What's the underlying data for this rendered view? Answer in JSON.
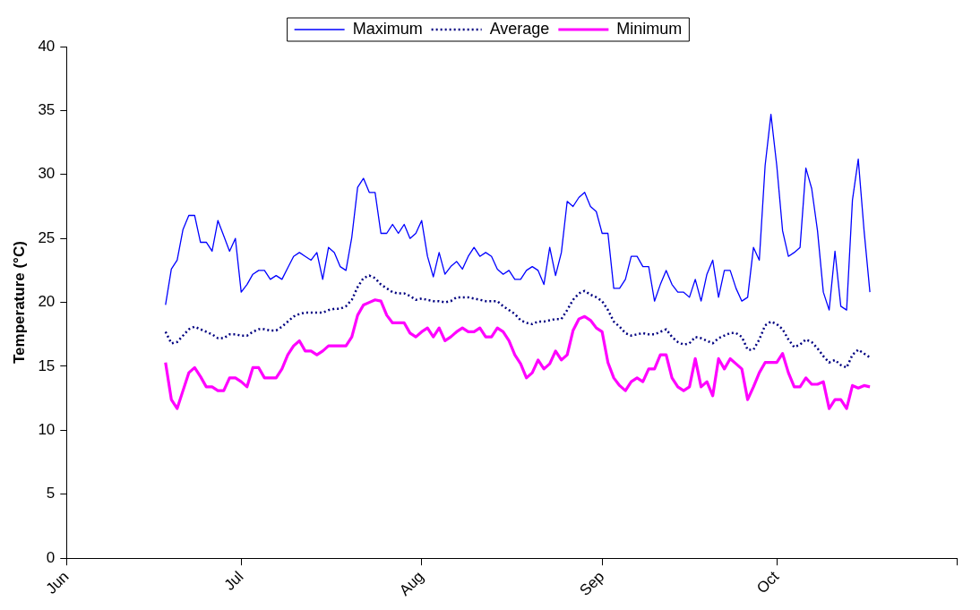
{
  "chart_data": {
    "type": "line",
    "ylabel": "Temperature (°C)",
    "ylim": [
      0,
      40
    ],
    "yticks": [
      0,
      5,
      10,
      15,
      20,
      25,
      30,
      35,
      40
    ],
    "grid": false,
    "legend": "top",
    "marker": "none",
    "xlim": [
      "--06-01",
      "--11-01"
    ],
    "xticks": [
      {
        "value": "--06-01",
        "label": "Jun"
      },
      {
        "value": "--07-01",
        "label": "Jul"
      },
      {
        "value": "--08-01",
        "label": "Aug"
      },
      {
        "value": "--09-01",
        "label": "Sep"
      },
      {
        "value": "--10-01",
        "label": "Oct"
      },
      {
        "value": "--11-01",
        "label": null
      }
    ],
    "x": [
      "--06-18",
      "--06-19",
      "--06-20",
      "--06-21",
      "--06-22",
      "--06-23",
      "--06-24",
      "--06-25",
      "--06-26",
      "--06-27",
      "--06-28",
      "--06-29",
      "--06-30",
      "--07-01",
      "--07-02",
      "--07-03",
      "--07-04",
      "--07-05",
      "--07-06",
      "--07-07",
      "--07-08",
      "--07-09",
      "--07-10",
      "--07-11",
      "--07-12",
      "--07-13",
      "--07-14",
      "--07-15",
      "--07-16",
      "--07-17",
      "--07-18",
      "--07-19",
      "--07-20",
      "--07-21",
      "--07-22",
      "--07-23",
      "--07-24",
      "--07-25",
      "--07-26",
      "--07-27",
      "--07-28",
      "--07-29",
      "--07-30",
      "--07-31",
      "--08-01",
      "--08-02",
      "--08-03",
      "--08-04",
      "--08-05",
      "--08-06",
      "--08-07",
      "--08-08",
      "--08-09",
      "--08-10",
      "--08-11",
      "--08-12",
      "--08-13",
      "--08-14",
      "--08-15",
      "--08-16",
      "--08-17",
      "--08-18",
      "--08-19",
      "--08-20",
      "--08-21",
      "--08-22",
      "--08-23",
      "--08-24",
      "--08-25",
      "--08-26",
      "--08-27",
      "--08-28",
      "--08-29",
      "--08-30",
      "--08-31",
      "--09-01",
      "--09-02",
      "--09-03",
      "--09-04",
      "--09-05",
      "--09-06",
      "--09-07",
      "--09-08",
      "--09-09",
      "--09-10",
      "--09-11",
      "--09-12",
      "--09-13",
      "--09-14",
      "--09-15",
      "--09-16",
      "--09-17",
      "--09-18",
      "--09-19",
      "--09-20",
      "--09-21",
      "--09-22",
      "--09-23",
      "--09-24",
      "--09-25",
      "--09-26",
      "--09-27",
      "--09-28",
      "--09-29",
      "--09-30",
      "--10-01",
      "--10-02",
      "--10-03",
      "--10-04",
      "--10-05",
      "--10-06",
      "--10-07",
      "--10-08",
      "--10-09",
      "--10-10",
      "--10-11",
      "--10-12",
      "--10-13",
      "--10-14",
      "--10-15",
      "--10-16",
      "--10-17"
    ],
    "series": [
      {
        "name": "Maximum",
        "color": "#0000ff",
        "line_style": "solid",
        "values": [
          19.8,
          22.6,
          23.3,
          25.7,
          26.8,
          26.8,
          24.7,
          24.7,
          24.0,
          26.4,
          25.2,
          24.0,
          25.0,
          20.8,
          21.4,
          22.2,
          22.5,
          22.5,
          21.8,
          22.1,
          21.8,
          22.7,
          23.6,
          23.9,
          23.6,
          23.3,
          23.9,
          21.8,
          24.3,
          23.9,
          22.8,
          22.5,
          25.1,
          29.0,
          29.7,
          28.6,
          28.6,
          25.4,
          25.4,
          26.1,
          25.4,
          26.1,
          25.0,
          25.4,
          26.4,
          23.6,
          22.0,
          23.9,
          22.2,
          22.8,
          23.2,
          22.6,
          23.6,
          24.3,
          23.6,
          23.9,
          23.6,
          22.6,
          22.2,
          22.5,
          21.8,
          21.8,
          22.5,
          22.8,
          22.5,
          21.4,
          24.3,
          22.1,
          23.9,
          27.9,
          27.5,
          28.2,
          28.6,
          27.5,
          27.1,
          25.4,
          25.4,
          21.1,
          21.1,
          21.8,
          23.6,
          23.6,
          22.8,
          22.8,
          20.1,
          21.4,
          22.5,
          21.4,
          20.8,
          20.8,
          20.4,
          21.8,
          20.1,
          22.2,
          23.3,
          20.4,
          22.5,
          22.5,
          21.1,
          20.1,
          20.4,
          24.3,
          23.3,
          30.7,
          34.7,
          30.7,
          25.6,
          23.6,
          23.9,
          24.3,
          30.5,
          28.9,
          25.6,
          20.8,
          19.4,
          24.0,
          19.7,
          19.4,
          28.0,
          31.2,
          25.6,
          20.8
        ]
      },
      {
        "name": "Average",
        "color": "#000080",
        "line_style": "dotted",
        "values": [
          17.7,
          16.8,
          16.9,
          17.4,
          17.9,
          18.1,
          17.9,
          17.7,
          17.5,
          17.2,
          17.2,
          17.5,
          17.5,
          17.4,
          17.4,
          17.7,
          17.9,
          17.9,
          17.8,
          17.8,
          18.1,
          18.5,
          18.9,
          19.1,
          19.2,
          19.2,
          19.2,
          19.2,
          19.4,
          19.5,
          19.5,
          19.7,
          20.2,
          21.2,
          21.9,
          22.1,
          21.9,
          21.4,
          21.1,
          20.8,
          20.7,
          20.7,
          20.5,
          20.2,
          20.3,
          20.2,
          20.1,
          20.1,
          20.0,
          20.1,
          20.4,
          20.4,
          20.4,
          20.3,
          20.2,
          20.1,
          20.1,
          20.1,
          19.7,
          19.4,
          19.1,
          18.6,
          18.4,
          18.3,
          18.5,
          18.5,
          18.6,
          18.7,
          18.7,
          19.4,
          20.2,
          20.7,
          20.9,
          20.6,
          20.4,
          20.1,
          19.4,
          18.5,
          18.1,
          17.6,
          17.4,
          17.5,
          17.6,
          17.5,
          17.5,
          17.7,
          17.9,
          17.3,
          16.9,
          16.7,
          16.8,
          17.3,
          17.2,
          17.0,
          16.8,
          17.2,
          17.4,
          17.6,
          17.6,
          17.3,
          16.3,
          16.3,
          17.1,
          18.2,
          18.5,
          18.3,
          17.9,
          17.1,
          16.5,
          16.7,
          17.1,
          16.9,
          16.4,
          15.8,
          15.3,
          15.5,
          15.1,
          14.9,
          15.9,
          16.3,
          16.0,
          15.7
        ]
      },
      {
        "name": "Minimum",
        "color": "#ff00ff",
        "line_style": "solid",
        "values": [
          15.3,
          12.4,
          11.7,
          13.1,
          14.5,
          14.9,
          14.2,
          13.4,
          13.4,
          13.1,
          13.1,
          14.1,
          14.1,
          13.8,
          13.4,
          14.9,
          14.9,
          14.1,
          14.1,
          14.1,
          14.8,
          15.9,
          16.6,
          17.0,
          16.2,
          16.2,
          15.9,
          16.2,
          16.6,
          16.6,
          16.6,
          16.6,
          17.3,
          19.0,
          19.8,
          20.0,
          20.2,
          20.1,
          19.0,
          18.4,
          18.4,
          18.4,
          17.6,
          17.3,
          17.7,
          18.0,
          17.3,
          18.0,
          17.0,
          17.3,
          17.7,
          18.0,
          17.7,
          17.7,
          18.0,
          17.3,
          17.3,
          18.0,
          17.7,
          17.0,
          15.9,
          15.2,
          14.1,
          14.5,
          15.5,
          14.8,
          15.2,
          16.2,
          15.5,
          15.9,
          17.8,
          18.7,
          18.9,
          18.6,
          18.0,
          17.7,
          15.3,
          14.1,
          13.5,
          13.1,
          13.8,
          14.1,
          13.8,
          14.8,
          14.8,
          15.9,
          15.9,
          14.1,
          13.4,
          13.1,
          13.4,
          15.6,
          13.4,
          13.8,
          12.7,
          15.6,
          14.8,
          15.6,
          15.2,
          14.8,
          12.4,
          13.4,
          14.5,
          15.3,
          15.3,
          15.3,
          16.0,
          14.5,
          13.4,
          13.4,
          14.1,
          13.6,
          13.6,
          13.8,
          11.7,
          12.4,
          12.4,
          11.7,
          13.5,
          13.3,
          13.5,
          13.4
        ]
      }
    ]
  }
}
